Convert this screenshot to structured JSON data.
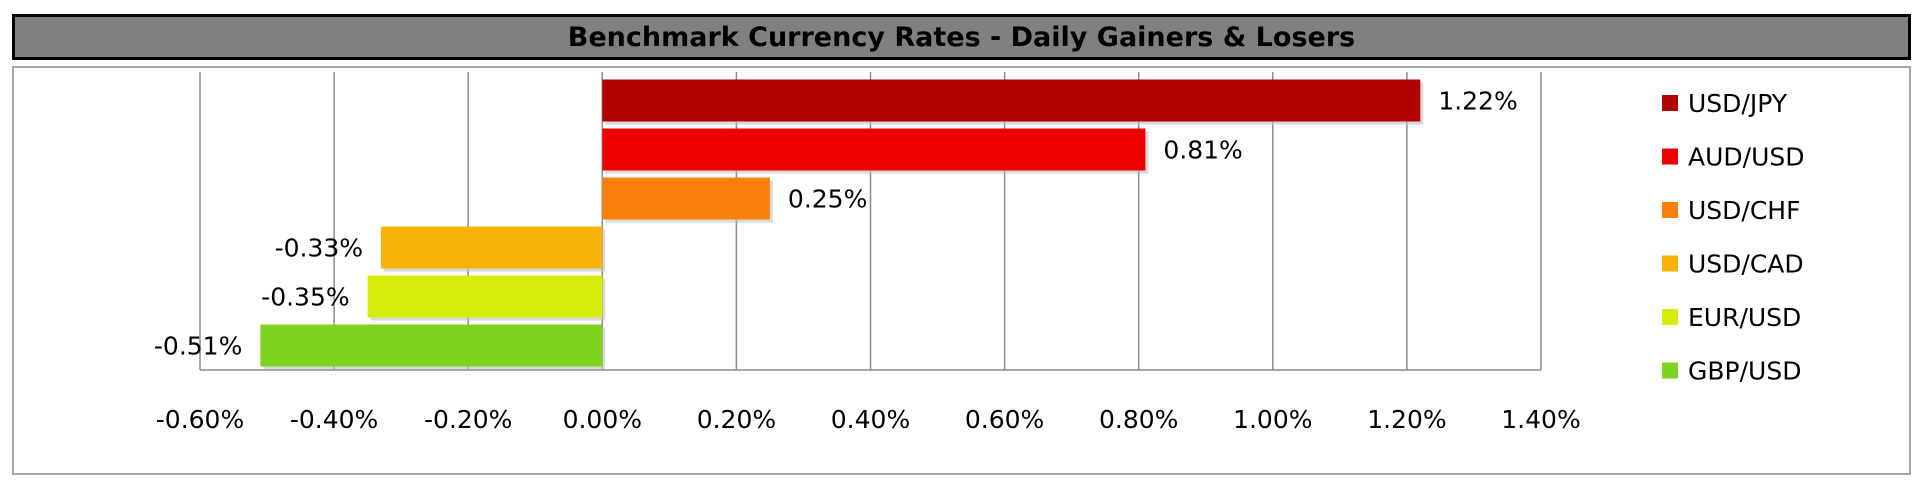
{
  "chart_data": {
    "type": "bar",
    "orientation": "horizontal",
    "title": "Benchmark Currency Rates - Daily Gainers & Losers",
    "categories": [
      "USD/JPY",
      "AUD/USD",
      "USD/CHF",
      "USD/CAD",
      "EUR/USD",
      "GBP/USD"
    ],
    "values": [
      1.22,
      0.81,
      0.25,
      -0.33,
      -0.35,
      -0.51
    ],
    "data_labels": [
      "1.22%",
      "0.81%",
      "0.25%",
      "-0.33%",
      "-0.35%",
      "-0.51%"
    ],
    "colors": [
      "#b00000",
      "#ee0000",
      "#f97f0b",
      "#f7b20a",
      "#d7ec0b",
      "#7ed321"
    ],
    "xlim": [
      -0.6,
      1.4
    ],
    "x_ticks": [
      -0.6,
      -0.4,
      -0.2,
      0.0,
      0.2,
      0.4,
      0.6,
      0.8,
      1.0,
      1.2,
      1.4
    ],
    "x_tick_labels": [
      "-0.60%",
      "-0.40%",
      "-0.20%",
      "0.00%",
      "0.20%",
      "0.40%",
      "0.60%",
      "0.80%",
      "1.00%",
      "1.20%",
      "1.40%"
    ],
    "grid": "vertical",
    "legend_position": "right",
    "xlabel": "",
    "ylabel": ""
  }
}
